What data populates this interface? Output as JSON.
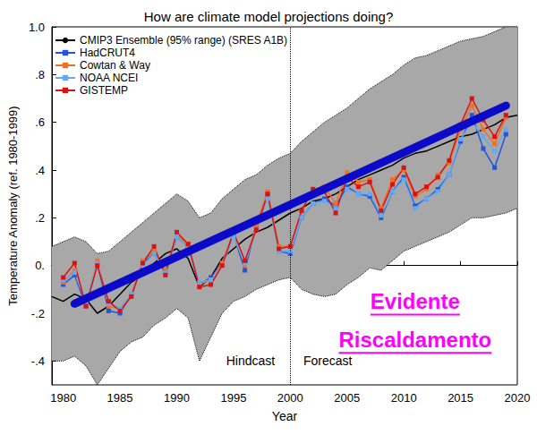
{
  "chart_data": {
    "type": "line",
    "title": "How are climate model projections doing?",
    "x_label": "Year",
    "y_label": "Temperature Anomaly (ref. 1980-1999)",
    "xlim": [
      1979,
      2020
    ],
    "xticks": [
      1980,
      1985,
      1990,
      1995,
      2000,
      2005,
      2010,
      2015,
      2020
    ],
    "ylim": [
      -0.5,
      1.0
    ],
    "yticks": [
      {
        "value": -0.4,
        "label": "-.4"
      },
      {
        "value": -0.2,
        "label": "-.2"
      },
      {
        "value": 0,
        "label": "0."
      },
      {
        "value": 0.2,
        "label": ".2"
      },
      {
        "value": 0.4,
        "label": ".4"
      },
      {
        "value": 0.6,
        "label": ".6"
      },
      {
        "value": 0.8,
        "label": ".8"
      },
      {
        "value": 1.0,
        "label": "1.0"
      }
    ],
    "grid": false,
    "legend": "upper left",
    "series": [
      {
        "name": "CMIP3 Ensemble (95% range) (SRES A1B)",
        "color": "#000000",
        "marker": "none",
        "line_style": "solid",
        "x": [
          1979,
          1980,
          1981,
          1982,
          1983,
          1984,
          1985,
          1986,
          1987,
          1988,
          1989,
          1990,
          1991,
          1992,
          1993,
          1994,
          1995,
          1996,
          1997,
          1998,
          1999,
          2000,
          2001,
          2002,
          2003,
          2004,
          2005,
          2006,
          2007,
          2008,
          2009,
          2010,
          2011,
          2012,
          2013,
          2014,
          2015,
          2016,
          2017,
          2018,
          2019,
          2020
        ],
        "values": [
          -0.13,
          -0.15,
          -0.12,
          -0.14,
          -0.2,
          -0.17,
          -0.12,
          -0.07,
          -0.04,
          0.01,
          0.05,
          0.07,
          0.03,
          -0.09,
          -0.05,
          0.03,
          0.07,
          0.11,
          0.14,
          0.16,
          0.19,
          0.22,
          0.24,
          0.27,
          0.28,
          0.3,
          0.33,
          0.36,
          0.38,
          0.4,
          0.42,
          0.45,
          0.47,
          0.48,
          0.5,
          0.52,
          0.54,
          0.55,
          0.57,
          0.59,
          0.62,
          0.63
        ],
        "lower": [
          -0.4,
          -0.4,
          -0.38,
          -0.42,
          -0.5,
          -0.43,
          -0.36,
          -0.32,
          -0.3,
          -0.25,
          -0.22,
          -0.18,
          -0.22,
          -0.4,
          -0.3,
          -0.2,
          -0.15,
          -0.13,
          -0.1,
          -0.08,
          -0.06,
          -0.05,
          -0.1,
          -0.12,
          -0.13,
          -0.12,
          -0.08,
          -0.05,
          -0.01,
          -0.02,
          0.02,
          0.06,
          0.08,
          0.1,
          0.12,
          0.14,
          0.17,
          0.2,
          0.2,
          0.21,
          0.22,
          0.24
        ],
        "upper": [
          0.08,
          0.1,
          0.12,
          0.1,
          0.05,
          0.06,
          0.1,
          0.14,
          0.18,
          0.22,
          0.26,
          0.3,
          0.27,
          0.2,
          0.22,
          0.28,
          0.32,
          0.36,
          0.38,
          0.42,
          0.45,
          0.47,
          0.52,
          0.56,
          0.6,
          0.63,
          0.66,
          0.7,
          0.74,
          0.77,
          0.8,
          0.84,
          0.87,
          0.88,
          0.9,
          0.92,
          0.94,
          0.95,
          0.96,
          0.98,
          1.0,
          1.0
        ]
      },
      {
        "name": "HadCRUT4",
        "color": "#2255dd",
        "marker": "square",
        "line_style": "solid",
        "x": [
          1980,
          1981,
          1982,
          1983,
          1984,
          1985,
          1986,
          1987,
          1988,
          1989,
          1990,
          1991,
          1992,
          1993,
          1994,
          1995,
          1996,
          1997,
          1998,
          1999,
          2000,
          2001,
          2002,
          2003,
          2004,
          2005,
          2006,
          2007,
          2008,
          2009,
          2010,
          2011,
          2012,
          2013,
          2014,
          2015,
          2016,
          2017,
          2018,
          2019
        ],
        "values": [
          -0.08,
          -0.04,
          -0.17,
          0.01,
          -0.19,
          -0.2,
          -0.12,
          0.01,
          0.05,
          -0.03,
          0.12,
          0.08,
          -0.08,
          -0.05,
          0.01,
          0.13,
          -0.02,
          0.17,
          0.3,
          0.06,
          0.05,
          0.2,
          0.26,
          0.28,
          0.25,
          0.33,
          0.3,
          0.29,
          0.2,
          0.31,
          0.37,
          0.25,
          0.28,
          0.32,
          0.38,
          0.52,
          0.63,
          0.49,
          0.41,
          0.55
        ]
      },
      {
        "name": "Cowtan & Way",
        "color": "#f07020",
        "marker": "square",
        "line_style": "solid",
        "x": [
          1980,
          1981,
          1982,
          1983,
          1984,
          1985,
          1986,
          1987,
          1988,
          1989,
          1990,
          1991,
          1992,
          1993,
          1994,
          1995,
          1996,
          1997,
          1998,
          1999,
          2000,
          2001,
          2002,
          2003,
          2004,
          2005,
          2006,
          2007,
          2008,
          2009,
          2010,
          2011,
          2012,
          2013,
          2014,
          2015,
          2016,
          2017,
          2018,
          2019
        ],
        "values": [
          -0.07,
          -0.02,
          -0.16,
          0.02,
          -0.17,
          -0.18,
          -0.12,
          0.02,
          0.06,
          -0.02,
          0.13,
          0.09,
          -0.08,
          -0.06,
          0.01,
          0.14,
          0.0,
          0.17,
          0.31,
          0.08,
          0.08,
          0.23,
          0.32,
          0.33,
          0.26,
          0.39,
          0.35,
          0.36,
          0.24,
          0.36,
          0.4,
          0.29,
          0.32,
          0.38,
          0.43,
          0.57,
          0.67,
          0.57,
          0.51,
          0.62
        ]
      },
      {
        "name": "NOAA NCEI",
        "color": "#66aaee",
        "marker": "square",
        "line_style": "solid",
        "x": [
          1980,
          1981,
          1982,
          1983,
          1984,
          1985,
          1986,
          1987,
          1988,
          1989,
          1990,
          1991,
          1992,
          1993,
          1994,
          1995,
          1996,
          1997,
          1998,
          1999,
          2000,
          2001,
          2002,
          2003,
          2004,
          2005,
          2006,
          2007,
          2008,
          2009,
          2010,
          2011,
          2012,
          2013,
          2014,
          2015,
          2016,
          2017,
          2018,
          2019
        ],
        "values": [
          -0.06,
          -0.03,
          -0.15,
          0.01,
          -0.16,
          -0.18,
          -0.12,
          0.0,
          0.05,
          -0.03,
          0.12,
          0.08,
          -0.07,
          -0.06,
          0.0,
          0.12,
          0.01,
          0.15,
          0.28,
          0.06,
          0.06,
          0.2,
          0.26,
          0.27,
          0.24,
          0.32,
          0.3,
          0.3,
          0.21,
          0.31,
          0.36,
          0.24,
          0.28,
          0.31,
          0.38,
          0.53,
          0.6,
          0.54,
          0.48,
          0.57
        ]
      },
      {
        "name": "GISTEMP",
        "color": "#dd1111",
        "marker": "square",
        "line_style": "solid",
        "x": [
          1980,
          1981,
          1982,
          1983,
          1984,
          1985,
          1986,
          1987,
          1988,
          1989,
          1990,
          1991,
          1992,
          1993,
          1994,
          1995,
          1996,
          1997,
          1998,
          1999,
          2000,
          2001,
          2002,
          2003,
          2004,
          2005,
          2006,
          2007,
          2008,
          2009,
          2010,
          2011,
          2012,
          2013,
          2014,
          2015,
          2016,
          2017,
          2018,
          2019
        ],
        "values": [
          -0.05,
          0.01,
          -0.17,
          0.0,
          -0.15,
          -0.19,
          -0.13,
          0.01,
          0.08,
          -0.04,
          0.14,
          0.09,
          -0.09,
          -0.08,
          0.0,
          0.14,
          0.02,
          0.15,
          0.3,
          0.07,
          0.08,
          0.23,
          0.32,
          0.31,
          0.22,
          0.37,
          0.33,
          0.35,
          0.23,
          0.34,
          0.41,
          0.3,
          0.33,
          0.37,
          0.44,
          0.59,
          0.7,
          0.61,
          0.54,
          0.63
        ]
      }
    ],
    "trend": {
      "color": "#0a0ac8",
      "line_style": "solid",
      "x": [
        1981,
        2019
      ],
      "values": [
        -0.16,
        0.67
      ]
    },
    "reference_lines": [
      {
        "x": 2000,
        "line_style": "dotted"
      }
    ],
    "annotations": [
      {
        "text": "Hindcast",
        "x": 1996.5,
        "y": -0.4
      },
      {
        "text": "Forecast",
        "x": 2003.3,
        "y": -0.4
      },
      {
        "text": "Evidente",
        "x": 2011,
        "y": -0.15,
        "color": "#ff00ff"
      },
      {
        "text": "Riscaldamento",
        "x": 2011,
        "y": -0.31,
        "color": "#ff00ff"
      }
    ]
  }
}
